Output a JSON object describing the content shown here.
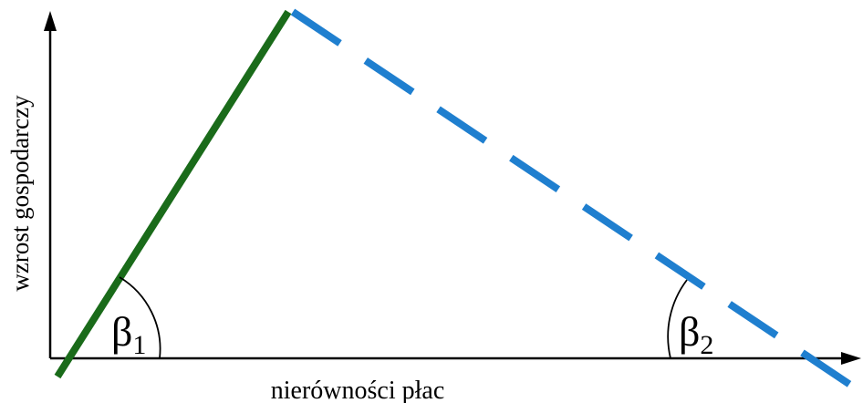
{
  "diagram": {
    "x_axis_label": "nierówności płac",
    "y_axis_label": "wzrost gospodarczy",
    "angles": [
      {
        "symbol": "β",
        "subscript": "1"
      },
      {
        "symbol": "β",
        "subscript": "2"
      }
    ],
    "colors": {
      "rising_segment": "#1a6b1a",
      "falling_segment": "#1f7fcf",
      "axes": "#000000"
    },
    "line_styles": {
      "rising_segment": "solid",
      "falling_segment": "dashed"
    }
  }
}
